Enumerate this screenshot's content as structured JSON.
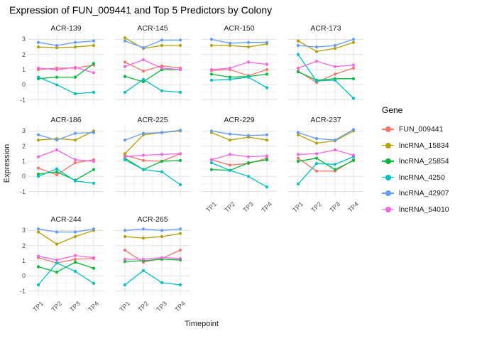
{
  "chart_data": {
    "type": "line",
    "title": "Expression of FUN_009441 and Top 5 Predictors by Colony",
    "xlabel": "Timepoint",
    "ylabel": "Expression",
    "legend_title": "Gene",
    "x": [
      "TP1",
      "TP2",
      "TP3",
      "TP4"
    ],
    "ylim": [
      -1,
      3
    ],
    "yticks": [
      -1,
      0,
      1,
      2,
      3
    ],
    "grid": true,
    "legend_position": "right",
    "series_names": [
      "FUN_009441",
      "lncRNA_15834",
      "lncRNA_25854",
      "lncRNA_4250",
      "lncRNA_42907",
      "lncRNA_54010"
    ],
    "series_colors": [
      "#F8766D",
      "#B79F00",
      "#00BA38",
      "#00BFC4",
      "#619CFF",
      "#F564E3"
    ],
    "facets": [
      {
        "name": "ACR-139",
        "values": [
          [
            1.0,
            1.1,
            1.1,
            1.3
          ],
          [
            2.5,
            2.45,
            2.5,
            2.6
          ],
          [
            0.4,
            0.5,
            0.5,
            1.4
          ],
          [
            0.5,
            0.0,
            -0.6,
            -0.5
          ],
          [
            2.8,
            2.6,
            2.8,
            2.9
          ],
          [
            1.1,
            1.0,
            1.15,
            0.8
          ]
        ]
      },
      {
        "name": "ACR-145",
        "values": [
          [
            1.5,
            0.9,
            1.25,
            1.1
          ],
          [
            3.1,
            2.4,
            2.6,
            2.6
          ],
          [
            0.55,
            0.2,
            1.0,
            1.0
          ],
          [
            -0.5,
            0.35,
            -0.4,
            -0.5
          ],
          [
            2.9,
            2.45,
            2.95,
            2.95
          ],
          [
            1.2,
            1.65,
            1.1,
            1.0
          ]
        ]
      },
      {
        "name": "ACR-150",
        "values": [
          [
            0.95,
            1.0,
            0.6,
            1.0
          ],
          [
            2.6,
            2.6,
            2.5,
            2.7
          ],
          [
            0.7,
            0.5,
            0.55,
            0.7
          ],
          [
            0.3,
            0.35,
            0.5,
            -0.2
          ],
          [
            3.0,
            2.75,
            2.8,
            2.8
          ],
          [
            1.0,
            1.1,
            1.5,
            1.35
          ]
        ]
      },
      {
        "name": "ACR-173",
        "values": [
          [
            0.9,
            0.15,
            0.7,
            1.1
          ],
          [
            2.9,
            2.2,
            2.4,
            2.8
          ],
          [
            0.85,
            0.3,
            0.4,
            0.4
          ],
          [
            2.0,
            0.25,
            0.3,
            -0.9
          ],
          [
            2.6,
            2.5,
            2.6,
            3.0
          ],
          [
            1.1,
            1.55,
            1.2,
            1.3
          ]
        ]
      },
      {
        "name": "ACR-186",
        "values": [
          [
            0.55,
            0.1,
            0.9,
            1.1
          ],
          [
            2.4,
            2.5,
            2.4,
            3.0
          ],
          [
            0.15,
            0.3,
            -0.25,
            0.45
          ],
          [
            0.0,
            0.5,
            -0.3,
            -0.45
          ],
          [
            2.75,
            2.4,
            2.85,
            2.9
          ],
          [
            1.3,
            1.75,
            1.1,
            1.0
          ]
        ]
      },
      {
        "name": "ACR-225",
        "values": [
          [
            1.4,
            1.05,
            1.0,
            1.5
          ],
          [
            1.5,
            2.75,
            2.9,
            3.0
          ],
          [
            1.2,
            0.45,
            1.0,
            1.05
          ],
          [
            1.1,
            0.45,
            0.3,
            -0.55
          ],
          [
            2.4,
            2.85,
            2.9,
            3.05
          ],
          [
            1.3,
            1.4,
            1.45,
            1.5
          ]
        ]
      },
      {
        "name": "ACR-229",
        "values": [
          [
            1.1,
            0.75,
            0.85,
            1.2
          ],
          [
            2.9,
            2.4,
            2.6,
            2.4
          ],
          [
            0.45,
            0.4,
            0.9,
            1.1
          ],
          [
            0.9,
            0.4,
            0.0,
            -0.7
          ],
          [
            3.0,
            2.8,
            2.7,
            2.75
          ],
          [
            1.1,
            1.45,
            1.3,
            1.35
          ]
        ]
      },
      {
        "name": "ACR-237",
        "values": [
          [
            1.2,
            0.35,
            0.35,
            1.1
          ],
          [
            2.75,
            2.2,
            2.35,
            3.0
          ],
          [
            1.0,
            1.2,
            0.45,
            1.05
          ],
          [
            -0.5,
            0.85,
            0.8,
            1.3
          ],
          [
            2.9,
            2.5,
            2.4,
            3.1
          ],
          [
            1.45,
            1.5,
            1.75,
            1.4
          ]
        ]
      },
      {
        "name": "ACR-244",
        "values": [
          [
            1.2,
            0.85,
            1.1,
            1.15
          ],
          [
            2.9,
            2.1,
            2.6,
            3.0
          ],
          [
            0.6,
            0.25,
            0.9,
            0.5
          ],
          [
            -0.6,
            0.85,
            0.3,
            -0.5
          ],
          [
            3.1,
            2.9,
            2.9,
            3.1
          ],
          [
            1.3,
            1.05,
            1.35,
            1.2
          ]
        ]
      },
      {
        "name": "ACR-265",
        "values": [
          [
            1.7,
            0.9,
            1.15,
            1.7
          ],
          [
            2.6,
            2.5,
            2.6,
            2.8
          ],
          [
            0.95,
            1.0,
            1.1,
            1.05
          ],
          [
            -0.6,
            0.35,
            -0.45,
            -0.6
          ],
          [
            3.0,
            3.1,
            3.0,
            3.1
          ],
          [
            1.1,
            1.1,
            1.2,
            1.15
          ]
        ]
      }
    ]
  }
}
